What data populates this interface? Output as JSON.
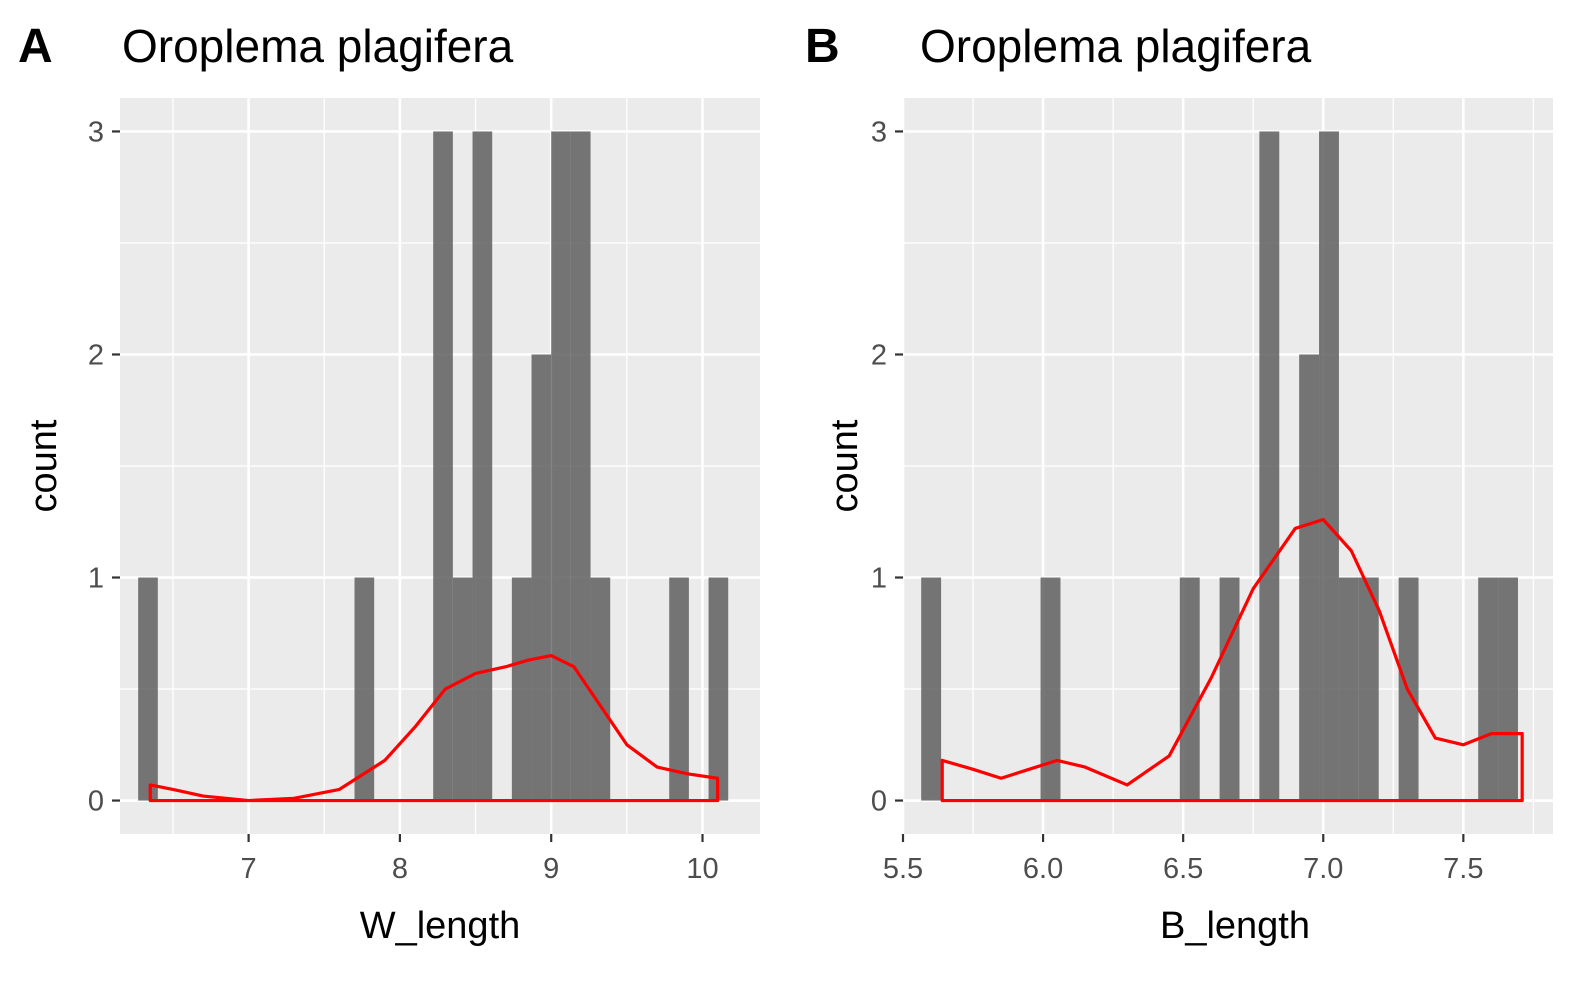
{
  "chart_data": [
    {
      "type": "bar",
      "panel_label": "A",
      "title": "Oroplema plagifera",
      "xlabel": "W_length",
      "ylabel": "count",
      "xlim": [
        6.15,
        10.38
      ],
      "ylim": [
        -0.15,
        3.15
      ],
      "x_ticks": [
        7,
        8,
        9,
        10
      ],
      "y_ticks": [
        0,
        1,
        2,
        3
      ],
      "x_tick_labels": [
        "7",
        "8",
        "9",
        "10"
      ],
      "y_tick_labels": [
        "0",
        "1",
        "2",
        "3"
      ],
      "grid": true,
      "bin_width": 0.13,
      "bins": [
        {
          "x0": 6.27,
          "x1": 6.4,
          "count": 1
        },
        {
          "x0": 7.7,
          "x1": 7.83,
          "count": 1
        },
        {
          "x0": 8.22,
          "x1": 8.35,
          "count": 3
        },
        {
          "x0": 8.35,
          "x1": 8.48,
          "count": 1
        },
        {
          "x0": 8.48,
          "x1": 8.61,
          "count": 3
        },
        {
          "x0": 8.74,
          "x1": 8.87,
          "count": 1
        },
        {
          "x0": 8.87,
          "x1": 9.0,
          "count": 2
        },
        {
          "x0": 9.0,
          "x1": 9.13,
          "count": 3
        },
        {
          "x0": 9.13,
          "x1": 9.26,
          "count": 3
        },
        {
          "x0": 9.26,
          "x1": 9.39,
          "count": 1
        },
        {
          "x0": 9.78,
          "x1": 9.91,
          "count": 1
        },
        {
          "x0": 10.04,
          "x1": 10.17,
          "count": 1
        }
      ],
      "density": {
        "color": "#ff0000",
        "x": [
          6.35,
          6.5,
          6.7,
          7.0,
          7.3,
          7.6,
          7.9,
          8.1,
          8.3,
          8.5,
          8.7,
          8.85,
          9.0,
          9.15,
          9.3,
          9.5,
          9.7,
          9.9,
          10.1
        ],
        "y": [
          0.07,
          0.05,
          0.02,
          0.0,
          0.01,
          0.05,
          0.18,
          0.33,
          0.5,
          0.57,
          0.6,
          0.63,
          0.65,
          0.6,
          0.45,
          0.25,
          0.15,
          0.12,
          0.1
        ]
      }
    },
    {
      "type": "bar",
      "panel_label": "B",
      "title": "Oroplema plagifera",
      "xlabel": "B_length",
      "ylabel": "count",
      "xlim": [
        5.5,
        7.82
      ],
      "ylim": [
        -0.15,
        3.15
      ],
      "x_ticks": [
        5.5,
        6.0,
        6.5,
        7.0,
        7.5
      ],
      "y_ticks": [
        0,
        1,
        2,
        3
      ],
      "x_tick_labels": [
        "5.5",
        "6.0",
        "6.5",
        "7.0",
        "7.5"
      ],
      "y_tick_labels": [
        "0",
        "1",
        "2",
        "3"
      ],
      "grid": true,
      "bin_width": 0.071,
      "bins": [
        {
          "x0": 5.565,
          "x1": 5.636,
          "count": 1
        },
        {
          "x0": 5.991,
          "x1": 6.062,
          "count": 1
        },
        {
          "x0": 6.488,
          "x1": 6.559,
          "count": 1
        },
        {
          "x0": 6.63,
          "x1": 6.701,
          "count": 1
        },
        {
          "x0": 6.772,
          "x1": 6.843,
          "count": 3
        },
        {
          "x0": 6.914,
          "x1": 6.985,
          "count": 2
        },
        {
          "x0": 6.985,
          "x1": 7.056,
          "count": 3
        },
        {
          "x0": 7.056,
          "x1": 7.127,
          "count": 1
        },
        {
          "x0": 7.127,
          "x1": 7.198,
          "count": 1
        },
        {
          "x0": 7.269,
          "x1": 7.34,
          "count": 1
        },
        {
          "x0": 7.553,
          "x1": 7.624,
          "count": 1
        },
        {
          "x0": 7.624,
          "x1": 7.695,
          "count": 1
        }
      ],
      "density": {
        "color": "#ff0000",
        "x": [
          5.64,
          5.75,
          5.85,
          5.95,
          6.05,
          6.15,
          6.3,
          6.45,
          6.6,
          6.75,
          6.9,
          7.0,
          7.1,
          7.2,
          7.3,
          7.4,
          7.5,
          7.6,
          7.71
        ],
        "y": [
          0.18,
          0.14,
          0.1,
          0.14,
          0.18,
          0.15,
          0.07,
          0.2,
          0.55,
          0.95,
          1.22,
          1.26,
          1.12,
          0.85,
          0.5,
          0.28,
          0.25,
          0.3,
          0.3
        ]
      }
    }
  ]
}
